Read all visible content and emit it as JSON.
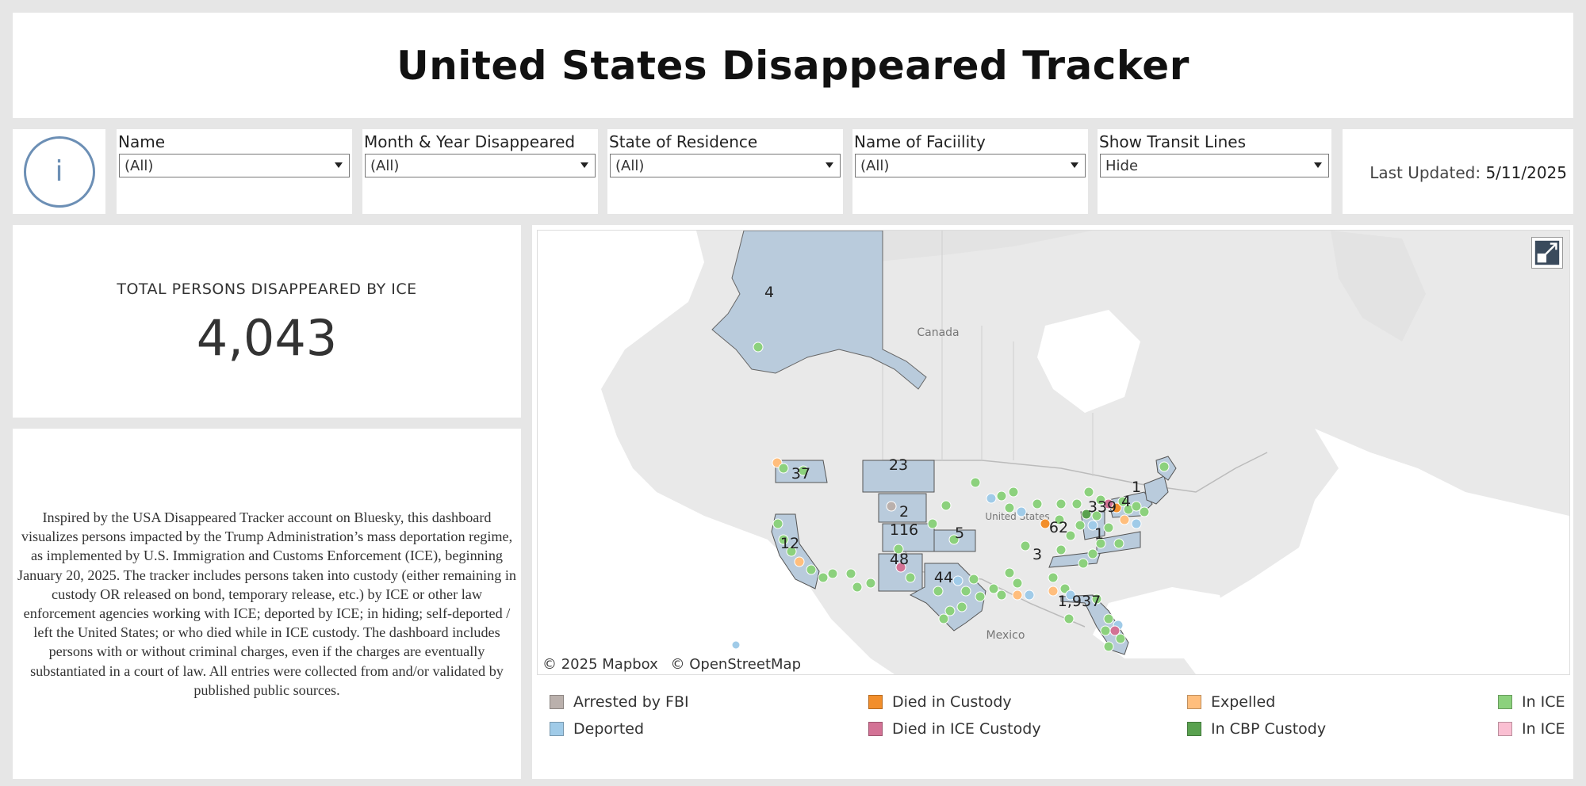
{
  "title": "United States Disappeared Tracker",
  "info_button": {
    "glyph": "i"
  },
  "filters": [
    {
      "label": "Name",
      "value": "(All)"
    },
    {
      "label": "Month & Year Disappeared",
      "value": "(All)"
    },
    {
      "label": "State of Residence",
      "value": "(All)"
    },
    {
      "label": "Name of Faciility",
      "value": "(All)"
    },
    {
      "label": "Show Transit Lines",
      "value": "Hide"
    }
  ],
  "last_updated": {
    "label": "Last Updated:",
    "value": "5/11/2025"
  },
  "kpi": {
    "label": "TOTAL PERSONS DISAPPEARED BY ICE",
    "value": "4,043"
  },
  "description": "Inspired by the USA Disappeared Tracker account on Bluesky, this dashboard visualizes persons impacted by the Trump Administration’s mass deportation regime, as implemented by U.S. Immigration and Customs Enforcement (ICE), beginning January 20, 2025. The tracker includes persons taken into custody (either remaining in custody OR released on bond, temporary release, etc.) by ICE or other law enforcement agencies working with ICE; deported by ICE; in hiding; self-deported / left the United States; or who died while in ICE custody. The dashboard includes persons with or without criminal charges, even if the charges are eventually substantiated in a court of law. All entries were collected from and/or validated by published public sources.",
  "map": {
    "place_labels": {
      "canada": "Canada",
      "mexico": "Mexico",
      "us": "United States"
    },
    "attribution": [
      "© 2025 Mapbox",
      "© OpenStreetMap"
    ],
    "state_counts": {
      "alaska": "4",
      "washington": "37",
      "montana": "23",
      "wyoming": "2",
      "colorado": "116",
      "kansas": "5",
      "new_mexico": "48",
      "california": "12",
      "texas": "44",
      "tennessee": "3",
      "florida": "1,937",
      "ohio": "62",
      "new_york_nj": "339",
      "maine": "1",
      "new_england": "4",
      "virginia": "1"
    },
    "colors": {
      "state_fill": "#b9cbdc",
      "land": "#e9e9e9",
      "water": "#ffffff"
    }
  },
  "legend": [
    {
      "label": "Arrested by FBI",
      "color": "#bab0ac"
    },
    {
      "label": "Deported",
      "color": "#a0cbe8"
    },
    {
      "label": "Died in Custody",
      "color": "#f28e2b"
    },
    {
      "label": "Died in ICE Custody",
      "color": "#d37295"
    },
    {
      "label": "Expelled",
      "color": "#ffbe7d"
    },
    {
      "label": "In CBP Custody",
      "color": "#59a14f"
    },
    {
      "label": "In ICE",
      "color": "#8cd17d"
    },
    {
      "label": "In ICE",
      "color": "#fabfd2"
    }
  ]
}
